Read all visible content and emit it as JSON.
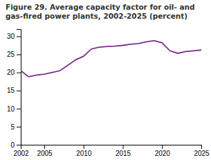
{
  "chart_data": {
    "type": "line",
    "title": "Figure 29. Average capacity factor for oil- and\ngas-fired power plants, 2002-2025 (percent)",
    "x": [
      2002,
      2003,
      2004,
      2005,
      2006,
      2007,
      2008,
      2009,
      2010,
      2011,
      2012,
      2013,
      2014,
      2015,
      2016,
      2017,
      2018,
      2019,
      2020,
      2021,
      2022,
      2023,
      2024,
      2025
    ],
    "values": [
      20.5,
      18.8,
      19.3,
      19.5,
      20.0,
      20.5,
      22.0,
      23.5,
      24.5,
      26.5,
      27.0,
      27.2,
      27.3,
      27.5,
      27.8,
      28.0,
      28.5,
      28.8,
      28.2,
      26.0,
      25.3,
      25.8,
      26.0,
      26.2
    ],
    "color": "#7B2D8B",
    "xlim": [
      2002,
      2025
    ],
    "ylim": [
      0,
      32
    ],
    "xticks": [
      2002,
      2005,
      2010,
      2015,
      2020,
      2025
    ],
    "yticks": [
      0,
      5,
      10,
      15,
      20,
      25,
      30
    ],
    "grid": false
  }
}
